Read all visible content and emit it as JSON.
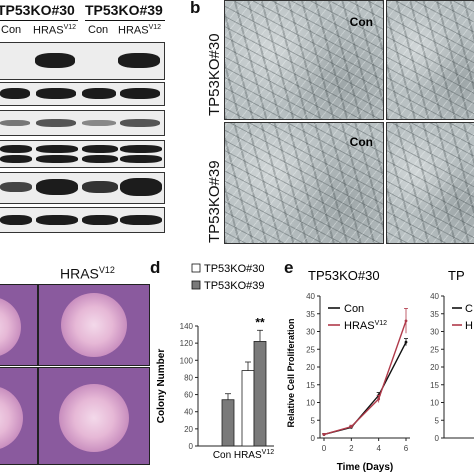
{
  "panel_a": {
    "headers": [
      "TP53KO#30",
      "TP53KO#39"
    ],
    "lane_labels": [
      "Con",
      "HRAS",
      "Con",
      "HRAS"
    ],
    "lane_superscripts": [
      "",
      "V12",
      "",
      "V12"
    ]
  },
  "panel_b": {
    "letter": "b",
    "row_labels": [
      "TP53KO#30",
      "TP53KO#39"
    ],
    "image_label": "Con"
  },
  "panel_c": {
    "title": "HRAS",
    "title_sup": "V12"
  },
  "chart_data": [
    {
      "type": "bar",
      "letter": "d",
      "categories": [
        "Con",
        "HRAS"
      ],
      "category_sup": [
        "",
        "V12"
      ],
      "series": [
        {
          "name": "TP53KO#30",
          "values": [
            null,
            88
          ],
          "errors": [
            null,
            10
          ],
          "color": "#ffffff"
        },
        {
          "name": "TP53KO#39",
          "values": [
            54,
            122
          ],
          "errors": [
            7,
            13
          ],
          "color": "#7a7a7a"
        }
      ],
      "ylabel": "Colony Number",
      "ylim": [
        0,
        140
      ],
      "yticks": [
        0,
        20,
        40,
        60,
        80,
        100,
        120,
        140
      ],
      "annotation": "**",
      "legend_placement": "top"
    },
    {
      "type": "line",
      "letter": "e",
      "title": "TP53KO#30",
      "x": [
        0,
        2,
        4,
        6
      ],
      "series": [
        {
          "name": "Con",
          "values": [
            1,
            3,
            12,
            27
          ],
          "errors": [
            0.2,
            0.3,
            0.8,
            1.0
          ],
          "color": "#111111"
        },
        {
          "name": "HRAS",
          "name_sup": "V12",
          "values": [
            1,
            3.2,
            11,
            33
          ],
          "errors": [
            0.2,
            0.4,
            1.0,
            3.5
          ],
          "color": "#b03a4a"
        }
      ],
      "xlabel": "Time (Days)",
      "ylabel": "Relative Cell Proliferation",
      "xlim": [
        0,
        6
      ],
      "ylim": [
        0,
        40
      ],
      "yticks": [
        0,
        5,
        10,
        15,
        20,
        25,
        30,
        35,
        40
      ],
      "xticks": [
        0,
        2,
        4,
        6
      ],
      "legend_placement": "top-left"
    },
    {
      "type": "line",
      "title": "TP",
      "yticks": [
        0,
        5,
        10,
        15,
        20,
        25,
        30,
        35,
        40
      ],
      "ylim": [
        0,
        40
      ],
      "legend_entries": [
        "C",
        "H"
      ]
    }
  ]
}
